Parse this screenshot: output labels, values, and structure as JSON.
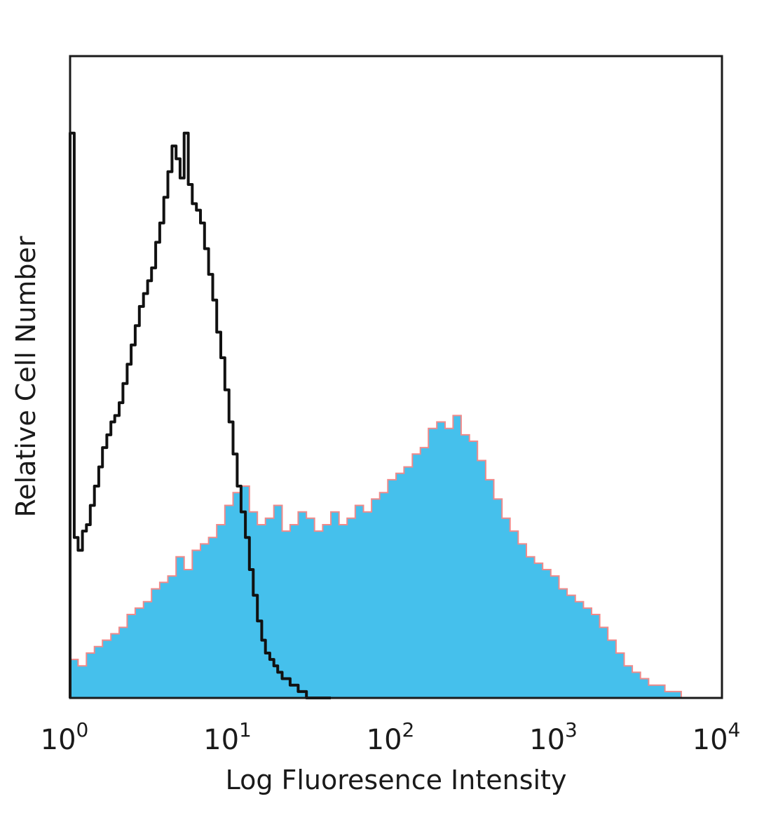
{
  "chart_data": {
    "type": "area",
    "title": "",
    "xlabel": "Log Fluoresence Intensity",
    "ylabel": "Relative Cell Number",
    "x_scale": "log",
    "xlim": [
      1,
      10000
    ],
    "ylim": [
      0,
      1
    ],
    "x_ticks": [
      {
        "base": "10",
        "exp": "0"
      },
      {
        "base": "10",
        "exp": "1"
      },
      {
        "base": "10",
        "exp": "2"
      },
      {
        "base": "10",
        "exp": "3"
      },
      {
        "base": "10",
        "exp": "4"
      }
    ],
    "grid": false,
    "legend": "none",
    "series": [
      {
        "style": "filled histogram",
        "fill_color": "#45c0ec",
        "edge_color": "#f08a8a",
        "x": [
          1.0,
          1.12,
          1.26,
          1.41,
          1.58,
          1.78,
          2.0,
          2.24,
          2.51,
          2.82,
          3.16,
          3.55,
          3.98,
          4.47,
          5.01,
          5.62,
          6.31,
          7.08,
          7.94,
          8.91,
          10.0,
          11.2,
          12.6,
          14.1,
          15.8,
          17.8,
          20.0,
          22.4,
          25.1,
          28.2,
          31.6,
          35.5,
          39.8,
          44.7,
          50.1,
          56.2,
          63.1,
          70.8,
          79.4,
          89.1,
          100,
          112,
          126,
          141,
          158,
          178,
          200,
          224,
          251,
          282,
          316,
          355,
          398,
          447,
          501,
          562,
          631,
          708,
          794,
          891,
          1000,
          1122,
          1259,
          1413,
          1585,
          1778,
          1995,
          2239,
          2512,
          2818,
          3162,
          3548,
          3981,
          4467,
          5012,
          5623,
          6310,
          7079,
          7943,
          8913,
          10000
        ],
        "y": [
          0.06,
          0.05,
          0.07,
          0.08,
          0.09,
          0.1,
          0.11,
          0.13,
          0.14,
          0.15,
          0.17,
          0.18,
          0.19,
          0.22,
          0.2,
          0.23,
          0.24,
          0.25,
          0.27,
          0.3,
          0.32,
          0.33,
          0.29,
          0.27,
          0.28,
          0.3,
          0.26,
          0.27,
          0.29,
          0.28,
          0.26,
          0.27,
          0.29,
          0.27,
          0.28,
          0.3,
          0.29,
          0.31,
          0.32,
          0.34,
          0.35,
          0.36,
          0.38,
          0.39,
          0.42,
          0.43,
          0.42,
          0.44,
          0.41,
          0.4,
          0.37,
          0.34,
          0.31,
          0.28,
          0.26,
          0.24,
          0.22,
          0.21,
          0.2,
          0.19,
          0.17,
          0.16,
          0.15,
          0.14,
          0.13,
          0.11,
          0.09,
          0.07,
          0.05,
          0.04,
          0.03,
          0.02,
          0.02,
          0.01,
          0.01,
          0.0,
          0.0,
          0.0,
          0.0,
          0.0,
          0.0
        ]
      },
      {
        "style": "outline histogram",
        "line_color": "#111111",
        "x": [
          1.0,
          1.06,
          1.12,
          1.19,
          1.26,
          1.33,
          1.41,
          1.5,
          1.58,
          1.68,
          1.78,
          1.88,
          2.0,
          2.11,
          2.24,
          2.37,
          2.51,
          2.66,
          2.82,
          2.99,
          3.16,
          3.35,
          3.55,
          3.76,
          3.98,
          4.22,
          4.47,
          4.73,
          5.01,
          5.31,
          5.62,
          5.96,
          6.31,
          6.68,
          7.08,
          7.5,
          7.94,
          8.41,
          8.91,
          9.44,
          10.0,
          10.6,
          11.2,
          11.9,
          12.6,
          13.3,
          14.1,
          15.0,
          15.8,
          16.8,
          17.8,
          18.8,
          20.0,
          21.1,
          22.4,
          23.7,
          25.1,
          26.6,
          28.2,
          29.9,
          31.6,
          33.5,
          35.5,
          37.6,
          39.8
        ],
        "y": [
          0.88,
          0.25,
          0.23,
          0.26,
          0.27,
          0.3,
          0.33,
          0.36,
          0.39,
          0.41,
          0.43,
          0.44,
          0.46,
          0.49,
          0.52,
          0.55,
          0.58,
          0.61,
          0.63,
          0.65,
          0.67,
          0.71,
          0.74,
          0.78,
          0.82,
          0.86,
          0.84,
          0.81,
          0.88,
          0.8,
          0.77,
          0.76,
          0.74,
          0.7,
          0.66,
          0.62,
          0.57,
          0.53,
          0.48,
          0.43,
          0.38,
          0.33,
          0.29,
          0.25,
          0.2,
          0.16,
          0.12,
          0.09,
          0.07,
          0.06,
          0.05,
          0.04,
          0.03,
          0.03,
          0.02,
          0.02,
          0.01,
          0.01,
          0.0,
          0.0,
          0.0,
          0.0,
          0.0,
          0.0,
          0.0
        ]
      }
    ]
  }
}
